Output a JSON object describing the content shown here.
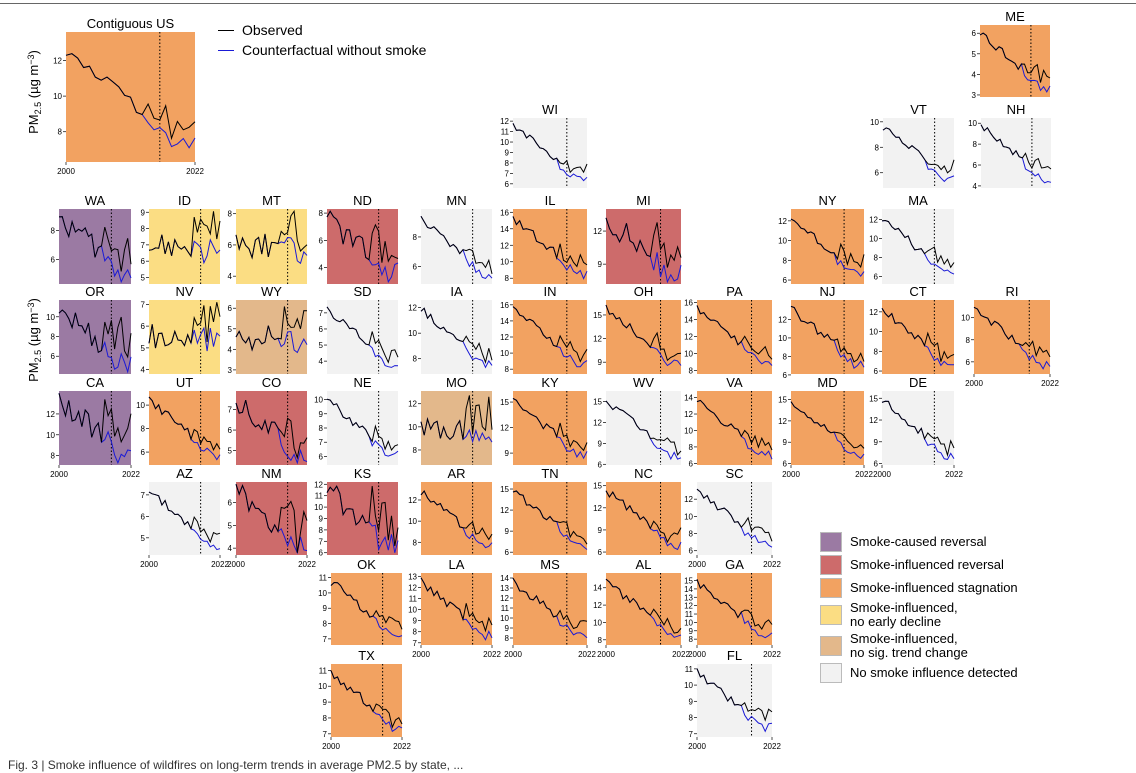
{
  "colors": {
    "reversal": "#9b7aa3",
    "influenced_reversal": "#cd6b6b",
    "stagnation": "#f2a261",
    "no_early_decline": "#fbdd83",
    "no_trend_change": "#e3b88b",
    "none": "#f2f2f2",
    "observed": "#000000",
    "counterfactual": "#1a1ad6"
  },
  "line_legend": {
    "observed": "Observed",
    "counterfactual": "Counterfactual without smoke"
  },
  "legend": [
    {
      "key": "reversal",
      "label": "Smoke-caused reversal"
    },
    {
      "key": "influenced_reversal",
      "label": "Smoke-influenced reversal"
    },
    {
      "key": "stagnation",
      "label": "Smoke-influenced stagnation"
    },
    {
      "key": "no_early_decline",
      "label": "Smoke-influenced,\nno early decline"
    },
    {
      "key": "no_trend_change",
      "label": "Smoke-influenced,\nno sig. trend change"
    },
    {
      "key": "none",
      "label": "No smoke influence detected"
    }
  ],
  "y_axis_label": "PM2.5 (µg m−3)",
  "caption": "Fig. 3 | Smoke influence of wildfires on long-term trends in average PM2.5 by state, ...",
  "chart_data": {
    "type": "line",
    "x_range": [
      2000,
      2022
    ],
    "breakpoint": 2016,
    "panels": [
      {
        "name": "Contiguous US",
        "cat": "stagnation",
        "yticks": [
          8,
          10,
          12
        ],
        "ylim": [
          6.3,
          13.6
        ],
        "xticks": [
          "2000",
          "2022"
        ]
      },
      {
        "name": "ME",
        "cat": "stagnation",
        "yticks": [
          3,
          4,
          5,
          6
        ],
        "ylim": [
          2.9,
          6.4
        ]
      },
      {
        "name": "WI",
        "cat": "none",
        "yticks": [
          6,
          7,
          8,
          9,
          10,
          11,
          12
        ],
        "ylim": [
          5.6,
          12.3
        ]
      },
      {
        "name": "VT",
        "cat": "none",
        "yticks": [
          6,
          8,
          10
        ],
        "ylim": [
          4.8,
          10.3
        ]
      },
      {
        "name": "NH",
        "cat": "none",
        "yticks": [
          4,
          6,
          8,
          10
        ],
        "ylim": [
          3.8,
          10.5
        ]
      },
      {
        "name": "WA",
        "cat": "reversal",
        "yticks": [
          6,
          8
        ],
        "ylim": [
          4.3,
          9.5
        ]
      },
      {
        "name": "ID",
        "cat": "no_early_decline",
        "yticks": [
          5,
          6,
          7,
          8,
          9
        ],
        "ylim": [
          4.6,
          9.2
        ]
      },
      {
        "name": "MT",
        "cat": "no_early_decline",
        "yticks": [
          4,
          6,
          8
        ],
        "ylim": [
          3.5,
          8.3
        ]
      },
      {
        "name": "ND",
        "cat": "influenced_reversal",
        "yticks": [
          4,
          6,
          8
        ],
        "ylim": [
          2.8,
          8.3
        ]
      },
      {
        "name": "MN",
        "cat": "none",
        "yticks": [
          6,
          8
        ],
        "ylim": [
          4.8,
          9.9
        ]
      },
      {
        "name": "IL",
        "cat": "stagnation",
        "yticks": [
          8,
          10,
          12,
          14,
          16
        ],
        "ylim": [
          7.3,
          16.4
        ]
      },
      {
        "name": "MI",
        "cat": "influenced_reversal",
        "yticks": [
          9,
          12
        ],
        "ylim": [
          7.2,
          14.0
        ]
      },
      {
        "name": "NY",
        "cat": "stagnation",
        "yticks": [
          6,
          8,
          10,
          12
        ],
        "ylim": [
          5.6,
          13.2
        ]
      },
      {
        "name": "MA",
        "cat": "none",
        "yticks": [
          6,
          8,
          10,
          12
        ],
        "ylim": [
          5.2,
          13.1
        ]
      },
      {
        "name": "OR",
        "cat": "reversal",
        "yticks": [
          6,
          8,
          10
        ],
        "ylim": [
          4.2,
          11.7
        ]
      },
      {
        "name": "NV",
        "cat": "no_early_decline",
        "yticks": [
          4,
          5,
          6,
          7
        ],
        "ylim": [
          3.8,
          7.2
        ]
      },
      {
        "name": "WY",
        "cat": "no_trend_change",
        "yticks": [
          3,
          4,
          5,
          6
        ],
        "ylim": [
          2.8,
          6.4
        ]
      },
      {
        "name": "SD",
        "cat": "none",
        "yticks": [
          4,
          5,
          6,
          7
        ],
        "ylim": [
          3.2,
          7.8
        ]
      },
      {
        "name": "IA",
        "cat": "none",
        "yticks": [
          8,
          10,
          12
        ],
        "ylim": [
          6.8,
          12.6
        ]
      },
      {
        "name": "IN",
        "cat": "stagnation",
        "yticks": [
          8,
          10,
          12,
          14,
          16
        ],
        "ylim": [
          7.4,
          16.6
        ]
      },
      {
        "name": "OH",
        "cat": "stagnation",
        "yticks": [
          9,
          12,
          15
        ],
        "ylim": [
          7.5,
          16.9
        ]
      },
      {
        "name": "PA",
        "cat": "stagnation",
        "yticks": [
          8,
          10,
          12,
          14,
          16
        ],
        "ylim": [
          7.6,
          16.3
        ]
      },
      {
        "name": "NJ",
        "cat": "stagnation",
        "yticks": [
          6,
          8,
          10,
          12
        ],
        "ylim": [
          6.1,
          14.1
        ]
      },
      {
        "name": "CT",
        "cat": "stagnation",
        "yticks": [
          6,
          8,
          10,
          12
        ],
        "ylim": [
          5.7,
          13.2
        ]
      },
      {
        "name": "RI",
        "cat": "stagnation",
        "yticks": [
          6,
          8,
          10
        ],
        "ylim": [
          4.9,
          11.6
        ],
        "xticks": [
          "2000",
          "2022"
        ]
      },
      {
        "name": "CA",
        "cat": "reversal",
        "yticks": [
          8,
          10,
          12
        ],
        "ylim": [
          7.1,
          14.2
        ],
        "xticks": [
          "2000",
          "2022"
        ]
      },
      {
        "name": "UT",
        "cat": "stagnation",
        "yticks": [
          6,
          8,
          10
        ],
        "ylim": [
          4.9,
          11.2
        ]
      },
      {
        "name": "CO",
        "cat": "influenced_reversal",
        "yticks": [
          5,
          6,
          7
        ],
        "ylim": [
          4.3,
          7.9
        ]
      },
      {
        "name": "NE",
        "cat": "none",
        "yticks": [
          6,
          7,
          8,
          9,
          10
        ],
        "ylim": [
          5.4,
          10.6
        ]
      },
      {
        "name": "MO",
        "cat": "no_trend_change",
        "yticks": [
          8,
          10,
          12
        ],
        "ylim": [
          6.7,
          13.1
        ]
      },
      {
        "name": "KY",
        "cat": "stagnation",
        "yticks": [
          9,
          12,
          15
        ],
        "ylim": [
          7.6,
          16.3
        ]
      },
      {
        "name": "WV",
        "cat": "none",
        "yticks": [
          6,
          9,
          12,
          15
        ],
        "ylim": [
          5.9,
          16.5
        ]
      },
      {
        "name": "VA",
        "cat": "stagnation",
        "yticks": [
          6,
          8,
          10,
          12,
          14
        ],
        "ylim": [
          5.8,
          14.8
        ]
      },
      {
        "name": "MD",
        "cat": "stagnation",
        "yticks": [
          6,
          9,
          12,
          15
        ],
        "ylim": [
          5.8,
          16.2
        ],
        "xticks": [
          "2000",
          "2022"
        ]
      },
      {
        "name": "DE",
        "cat": "none",
        "yticks": [
          6,
          9,
          12,
          15
        ],
        "ylim": [
          5.8,
          16.0
        ],
        "xticks": [
          "2000",
          "2022"
        ]
      },
      {
        "name": "AZ",
        "cat": "none",
        "yticks": [
          5,
          6,
          7
        ],
        "ylim": [
          4.2,
          7.6
        ],
        "xticks": [
          "2000",
          "2022"
        ]
      },
      {
        "name": "NM",
        "cat": "influenced_reversal",
        "yticks": [
          4,
          5,
          6
        ],
        "ylim": [
          3.7,
          6.9
        ],
        "xticks": [
          "2000",
          "2022"
        ]
      },
      {
        "name": "KS",
        "cat": "influenced_reversal",
        "yticks": [
          6,
          7,
          8,
          9,
          10,
          11,
          12
        ],
        "ylim": [
          5.8,
          12.2
        ]
      },
      {
        "name": "AR",
        "cat": "stagnation",
        "yticks": [
          8,
          10,
          12
        ],
        "ylim": [
          6.8,
          13.7
        ]
      },
      {
        "name": "TN",
        "cat": "stagnation",
        "yticks": [
          6,
          9,
          12,
          15
        ],
        "ylim": [
          5.6,
          16.0
        ]
      },
      {
        "name": "NC",
        "cat": "stagnation",
        "yticks": [
          6,
          9,
          12,
          15
        ],
        "ylim": [
          5.6,
          15.5
        ]
      },
      {
        "name": "SC",
        "cat": "none",
        "yticks": [
          6,
          8,
          10,
          12
        ],
        "ylim": [
          5.5,
          14.0
        ],
        "xticks": [
          "2000",
          "2022"
        ]
      },
      {
        "name": "OK",
        "cat": "stagnation",
        "yticks": [
          7,
          8,
          9,
          10,
          11
        ],
        "ylim": [
          6.6,
          11.3
        ]
      },
      {
        "name": "LA",
        "cat": "stagnation",
        "yticks": [
          7,
          8,
          9,
          10,
          11,
          12,
          13
        ],
        "ylim": [
          6.8,
          13.3
        ],
        "xticks": [
          "2000",
          "2022"
        ]
      },
      {
        "name": "MS",
        "cat": "stagnation",
        "yticks": [
          8,
          9,
          10,
          11,
          12,
          13,
          14
        ],
        "ylim": [
          7.3,
          14.5
        ],
        "xticks": [
          "2000",
          "2022"
        ]
      },
      {
        "name": "AL",
        "cat": "stagnation",
        "yticks": [
          8,
          10,
          12,
          14
        ],
        "ylim": [
          7.4,
          15.7
        ],
        "xticks": [
          "2000",
          "2022"
        ]
      },
      {
        "name": "GA",
        "cat": "stagnation",
        "yticks": [
          8,
          9,
          10,
          11,
          12,
          13,
          14,
          15
        ],
        "ylim": [
          7.3,
          15.9
        ],
        "xticks": [
          "2000",
          "2022"
        ]
      },
      {
        "name": "TX",
        "cat": "stagnation",
        "yticks": [
          7,
          8,
          9,
          10,
          11
        ],
        "ylim": [
          6.8,
          11.4
        ],
        "xticks": [
          "2000",
          "2022"
        ]
      },
      {
        "name": "FL",
        "cat": "none",
        "yticks": [
          7,
          8,
          9,
          10,
          11
        ],
        "ylim": [
          6.8,
          11.3
        ],
        "xticks": [
          "2000",
          "2022"
        ]
      }
    ]
  }
}
